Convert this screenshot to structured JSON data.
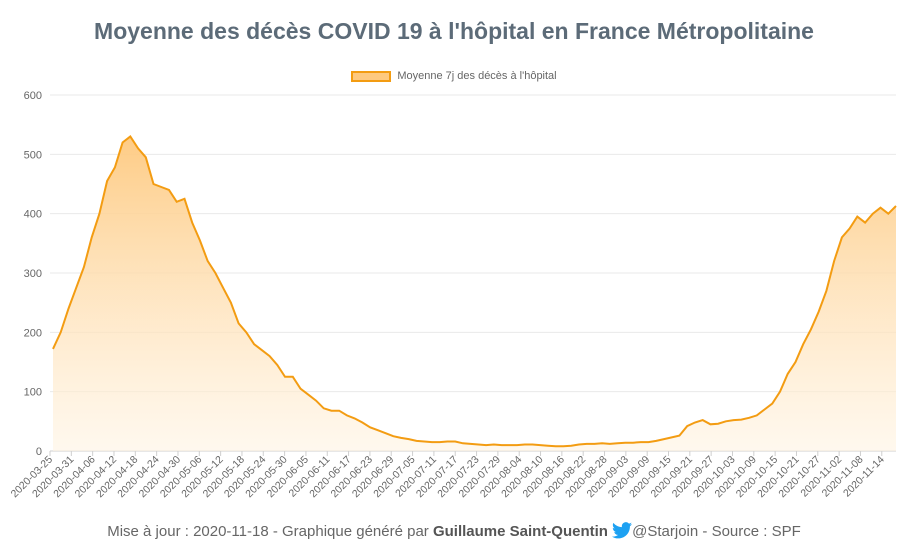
{
  "chart_data": {
    "type": "area",
    "title": "Moyenne des décès COVID 19 à l'hôpital en France Métropolitaine",
    "legend": "Moyenne 7j des décès à l'hôpital",
    "legend_position": "top-center",
    "ylim": [
      0,
      600
    ],
    "yticks": [
      "0",
      "100",
      "200",
      "300",
      "400",
      "500",
      "600"
    ],
    "grid": true,
    "xticks": [
      "2020-03-25",
      "2020-03-31",
      "2020-04-06",
      "2020-04-12",
      "2020-04-18",
      "2020-04-24",
      "2020-04-30",
      "2020-05-06",
      "2020-05-12",
      "2020-05-18",
      "2020-05-24",
      "2020-05-30",
      "2020-06-05",
      "2020-06-11",
      "2020-06-17",
      "2020-06-23",
      "2020-06-29",
      "2020-07-05",
      "2020-07-11",
      "2020-07-17",
      "2020-07-23",
      "2020-07-29",
      "2020-08-04",
      "2020-08-10",
      "2020-08-16",
      "2020-08-22",
      "2020-08-28",
      "2020-09-03",
      "2020-09-09",
      "2020-09-15",
      "2020-09-21",
      "2020-09-27",
      "2020-10-03",
      "2020-10-09",
      "2020-10-15",
      "2020-10-21",
      "2020-10-27",
      "2020-11-02",
      "2020-11-08",
      "2020-11-14"
    ],
    "x_start": "2020-03-25",
    "x_end": "2020-11-18",
    "values": [
      172,
      200,
      240,
      275,
      310,
      360,
      400,
      455,
      478,
      520,
      530,
      510,
      495,
      450,
      445,
      440,
      420,
      425,
      385,
      355,
      320,
      300,
      275,
      250,
      215,
      200,
      180,
      170,
      160,
      145,
      125,
      125,
      105,
      95,
      85,
      72,
      68,
      68,
      60,
      55,
      48,
      40,
      35,
      30,
      25,
      22,
      20,
      17,
      16,
      15,
      15,
      16,
      16,
      13,
      12,
      11,
      10,
      11,
      10,
      10,
      10,
      11,
      11,
      10,
      9,
      8,
      8,
      9,
      11,
      12,
      12,
      13,
      12,
      13,
      14,
      14,
      15,
      15,
      17,
      20,
      23,
      26,
      42,
      48,
      52,
      45,
      46,
      50,
      52,
      53,
      56,
      60,
      70,
      80,
      100,
      130,
      150,
      180,
      205,
      235,
      270,
      320,
      360,
      375,
      395,
      385,
      400,
      410,
      400,
      413
    ],
    "line_color": "#f39c12",
    "fill_top_color": "#fec97f"
  },
  "footer": {
    "prefix": "Mise à jour : 2020-11-18 - Graphique généré par ",
    "author": "Guillaume Saint-Quentin",
    "handle": "@Starjoin",
    "suffix": " - Source : SPF"
  },
  "icons": {
    "social": "twitter-bird-icon"
  }
}
